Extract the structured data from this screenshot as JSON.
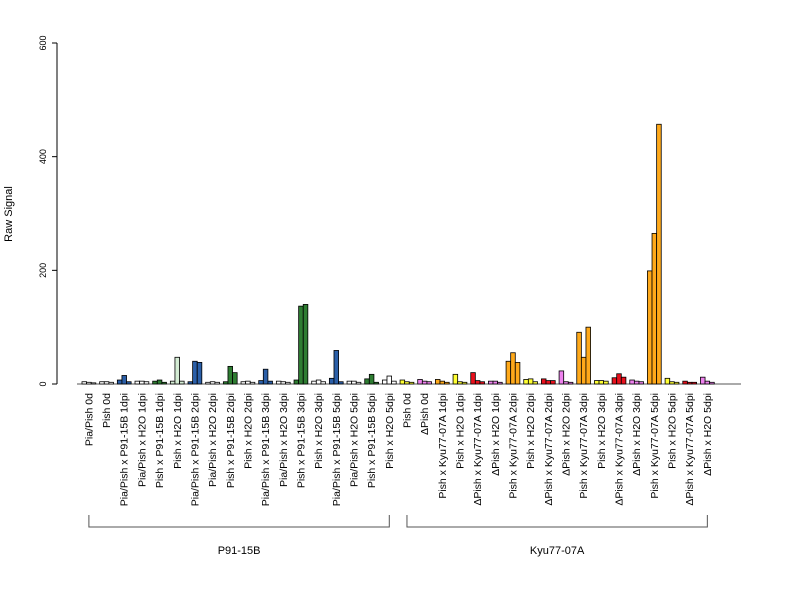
{
  "chart_data": {
    "type": "bar",
    "ylabel": "Raw Signal",
    "xlabel": "",
    "ylim": [
      0,
      600
    ],
    "yticks": [
      0,
      200,
      400,
      600
    ],
    "grid": false,
    "legend": "none",
    "bars_per_category": 3,
    "colors": {
      "white": "#ffffff",
      "blue": "#2b5fa8",
      "lightgreen": "#d4ecd4",
      "darkgreen": "#2e7d32",
      "yellow": "#ffff33",
      "violet": "#ee82ee",
      "red": "#e8101c",
      "orange": "#ffa91a"
    },
    "categories": [
      {
        "label": "Pia/Pish 0d",
        "color": "white",
        "values": [
          4,
          3,
          2
        ]
      },
      {
        "label": "Pish 0d",
        "color": "white",
        "values": [
          4,
          4,
          3
        ]
      },
      {
        "label": "Pia/Pish x P91-15B 1dpi",
        "color": "blue",
        "values": [
          7,
          15,
          4
        ]
      },
      {
        "label": "Pia/Pish x H2O 1dpi",
        "color": "white",
        "values": [
          5,
          5,
          4
        ]
      },
      {
        "label": "Pish x P91-15B 1dpi",
        "color": "darkgreen",
        "values": [
          5,
          7,
          3
        ]
      },
      {
        "label": "Pish x H2O 1dpi",
        "color": "lightgreen",
        "values": [
          5,
          47,
          5
        ]
      },
      {
        "label": "Pia/Pish x P91-15B 2dpi",
        "color": "blue",
        "values": [
          4,
          40,
          38
        ]
      },
      {
        "label": "Pia/Pish x H2O 2dpi",
        "color": "white",
        "values": [
          3,
          4,
          3
        ]
      },
      {
        "label": "Pish x P91-15B 2dpi",
        "color": "darkgreen",
        "values": [
          4,
          31,
          20
        ]
      },
      {
        "label": "Pish x H2O 2dpi",
        "color": "white",
        "values": [
          4,
          5,
          3
        ]
      },
      {
        "label": "Pia/Pish x P91-15B 3dpi",
        "color": "blue",
        "values": [
          6,
          26,
          5
        ]
      },
      {
        "label": "Pia/Pish x H2O 3dpi",
        "color": "white",
        "values": [
          5,
          4,
          3
        ]
      },
      {
        "label": "Pish x P91-15B 3dpi",
        "color": "darkgreen",
        "values": [
          7,
          137,
          140
        ]
      },
      {
        "label": "Pish x H2O 3dpi",
        "color": "white",
        "values": [
          5,
          7,
          4
        ]
      },
      {
        "label": "Pia/Pish x P91-15B 5dpi",
        "color": "blue",
        "values": [
          10,
          59,
          4
        ]
      },
      {
        "label": "Pia/Pish x H2O 5dpi",
        "color": "white",
        "values": [
          5,
          5,
          3
        ]
      },
      {
        "label": "Pish x P91-15B 5dpi",
        "color": "darkgreen",
        "values": [
          9,
          17,
          3
        ]
      },
      {
        "label": "Pish x H2O 5dpi",
        "color": "white",
        "values": [
          7,
          14,
          5
        ]
      },
      {
        "label": "Pish 0d",
        "color": "yellow",
        "values": [
          7,
          4,
          3
        ]
      },
      {
        "label": "ΔPish 0d",
        "color": "violet",
        "values": [
          8,
          5,
          4
        ]
      },
      {
        "label": "Pish x Kyu77-07A 1dpi",
        "color": "orange",
        "values": [
          8,
          5,
          3
        ]
      },
      {
        "label": "Pish x H2O 1dpi",
        "color": "yellow",
        "values": [
          17,
          4,
          3
        ]
      },
      {
        "label": "ΔPish x Kyu77-07A 1dpi",
        "color": "red",
        "values": [
          20,
          6,
          4
        ]
      },
      {
        "label": "ΔPish x H2O 1dpi",
        "color": "violet",
        "values": [
          5,
          5,
          3
        ]
      },
      {
        "label": "Pish x Kyu77-07A 2dpi",
        "color": "orange",
        "values": [
          40,
          55,
          38
        ]
      },
      {
        "label": "Pish x H2O 2dpi",
        "color": "yellow",
        "values": [
          8,
          9,
          4
        ]
      },
      {
        "label": "ΔPish x Kyu77-07A 2dpi",
        "color": "red",
        "values": [
          9,
          6,
          6
        ]
      },
      {
        "label": "ΔPish x H2O 2dpi",
        "color": "violet",
        "values": [
          23,
          4,
          3
        ]
      },
      {
        "label": "Pish x Kyu77-07A 3dpi",
        "color": "orange",
        "values": [
          91,
          47,
          100
        ]
      },
      {
        "label": "Pish x H2O 3dpi",
        "color": "yellow",
        "values": [
          6,
          6,
          5
        ]
      },
      {
        "label": "ΔPish x Kyu77-07A 3dpi",
        "color": "red",
        "values": [
          11,
          18,
          12
        ]
      },
      {
        "label": "ΔPish x H2O 3dpi",
        "color": "violet",
        "values": [
          7,
          5,
          4
        ]
      },
      {
        "label": "Pish x Kyu77-07A 5dpi",
        "color": "orange",
        "values": [
          199,
          265,
          457
        ]
      },
      {
        "label": "Pish x H2O 5dpi",
        "color": "yellow",
        "values": [
          10,
          4,
          3
        ]
      },
      {
        "label": "ΔPish x Kyu77-07A 5dpi",
        "color": "red",
        "values": [
          5,
          3,
          3
        ]
      },
      {
        "label": "ΔPish x H2O 5dpi",
        "color": "violet",
        "values": [
          12,
          5,
          3
        ]
      }
    ],
    "groups": [
      {
        "label": "P91-15B",
        "first": 0,
        "last": 17
      },
      {
        "label": "Kyu77-07A",
        "first": 18,
        "last": 35
      }
    ]
  }
}
